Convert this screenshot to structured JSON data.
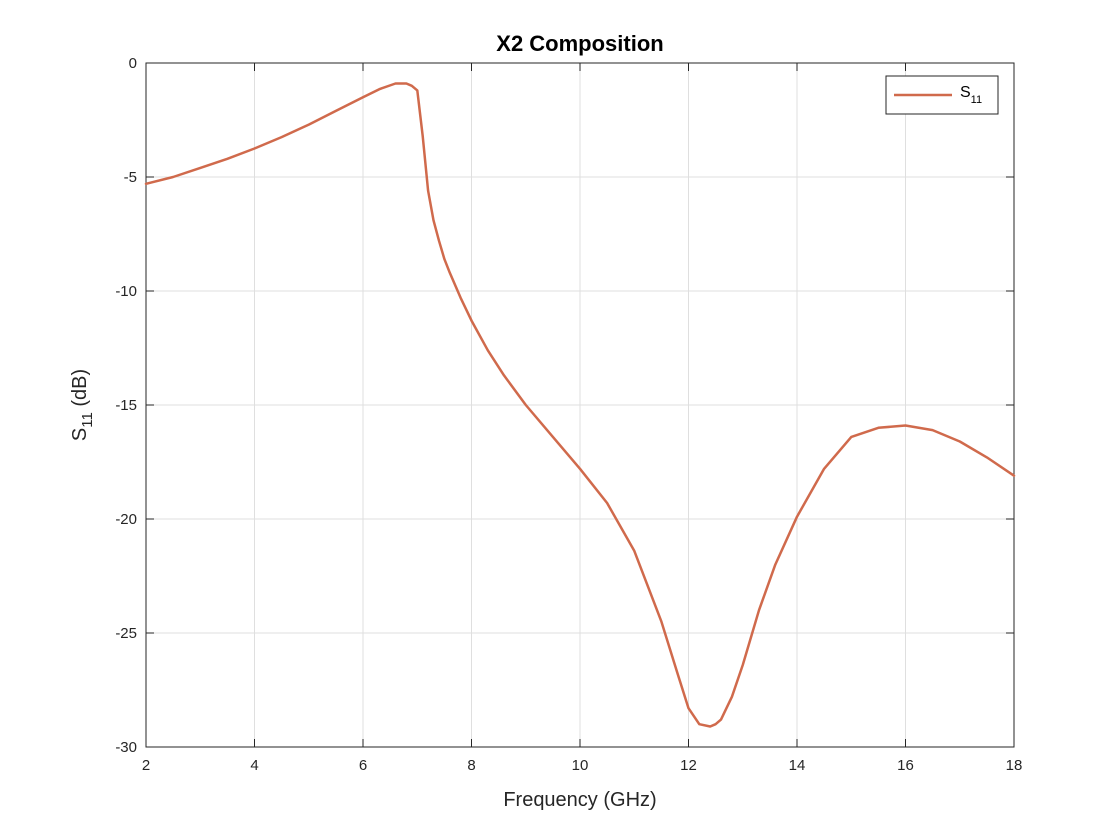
{
  "chart_data": {
    "type": "line",
    "title": "X2 Composition",
    "xlabel": "Frequency (GHz)",
    "ylabel": {
      "main": "S",
      "sub": "11",
      "unit": " (dB)"
    },
    "xlim": [
      2,
      18
    ],
    "ylim": [
      -30,
      0
    ],
    "xticks": [
      2,
      4,
      6,
      8,
      10,
      12,
      14,
      16,
      18
    ],
    "yticks": [
      0,
      -5,
      -10,
      -15,
      -20,
      -25,
      -30
    ],
    "xtick_labels": [
      "2",
      "4",
      "6",
      "8",
      "10",
      "12",
      "14",
      "16",
      "18"
    ],
    "ytick_labels": [
      "0",
      "-5",
      "-10",
      "-15",
      "-20",
      "-25",
      "-30"
    ],
    "grid": true,
    "legend_position": "top-right",
    "series": [
      {
        "name": "S11",
        "legend": {
          "main": "S",
          "sub": "11"
        },
        "color": "#d06a4c",
        "x": [
          2.0,
          2.5,
          3.0,
          3.5,
          4.0,
          4.5,
          5.0,
          5.5,
          6.0,
          6.3,
          6.6,
          6.8,
          6.9,
          7.0,
          7.1,
          7.2,
          7.3,
          7.4,
          7.5,
          7.6,
          7.8,
          8.0,
          8.3,
          8.6,
          9.0,
          9.5,
          10.0,
          10.5,
          11.0,
          11.5,
          11.8,
          12.0,
          12.2,
          12.4,
          12.5,
          12.6,
          12.8,
          13.0,
          13.3,
          13.6,
          14.0,
          14.5,
          15.0,
          15.5,
          16.0,
          16.5,
          17.0,
          17.5,
          18.0
        ],
        "y": [
          -5.3,
          -5.0,
          -4.6,
          -4.2,
          -3.75,
          -3.25,
          -2.7,
          -2.1,
          -1.5,
          -1.15,
          -0.9,
          -0.9,
          -1.0,
          -1.2,
          -3.2,
          -5.6,
          -6.9,
          -7.8,
          -8.6,
          -9.2,
          -10.3,
          -11.3,
          -12.6,
          -13.7,
          -15.0,
          -16.4,
          -17.8,
          -19.3,
          -21.4,
          -24.5,
          -26.8,
          -28.3,
          -29.0,
          -29.1,
          -29.0,
          -28.8,
          -27.8,
          -26.4,
          -24.0,
          -22.0,
          -19.9,
          -17.8,
          -16.4,
          -16.0,
          -15.9,
          -16.1,
          -16.6,
          -17.3,
          -18.1
        ]
      }
    ]
  }
}
